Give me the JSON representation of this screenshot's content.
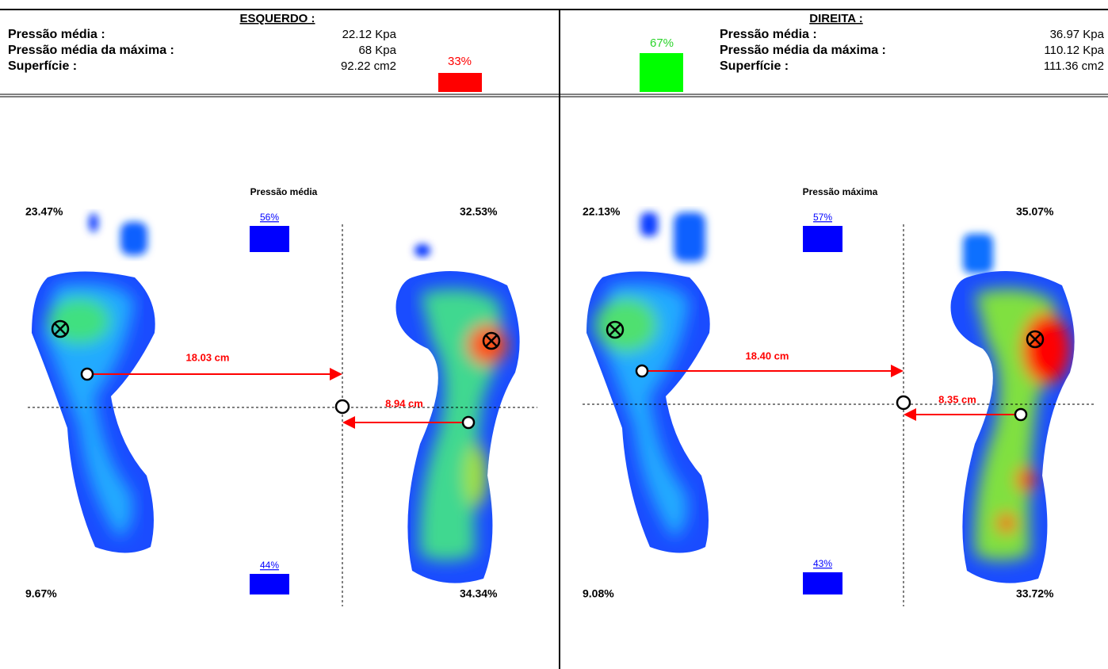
{
  "header": {
    "left": {
      "title": "ESQUERDO :",
      "rows": [
        {
          "label": "Pressão média :",
          "value": "22.12 Kpa"
        },
        {
          "label": "Pressão média da máxima :",
          "value": "68 Kpa"
        },
        {
          "label": "Superfície :",
          "value": "92.22 cm2"
        }
      ],
      "percent": "33%"
    },
    "right": {
      "title": "DIREITA :",
      "rows": [
        {
          "label": "Pressão média :",
          "value": "36.97 Kpa"
        },
        {
          "label": "Pressão média da máxima :",
          "value": "110.12 Kpa"
        },
        {
          "label": "Superfície :",
          "value": "111.36 cm2"
        }
      ],
      "percent": "67%"
    }
  },
  "panels": [
    {
      "title": "Pressão média",
      "top_left": "23.47%",
      "top_right": "32.53%",
      "top_percent": "56%",
      "bottom_percent": "44%",
      "bottom_left": "9.67%",
      "bottom_right": "34.34%",
      "distance_long": "18.03 cm",
      "distance_short": "8.94 cm"
    },
    {
      "title": "Pressão máxima",
      "top_left": "22.13%",
      "top_right": "35.07%",
      "top_percent": "57%",
      "bottom_percent": "43%",
      "bottom_left": "9.08%",
      "bottom_right": "33.72%",
      "distance_long": "18.40 cm",
      "distance_short": "8.35 cm"
    }
  ]
}
